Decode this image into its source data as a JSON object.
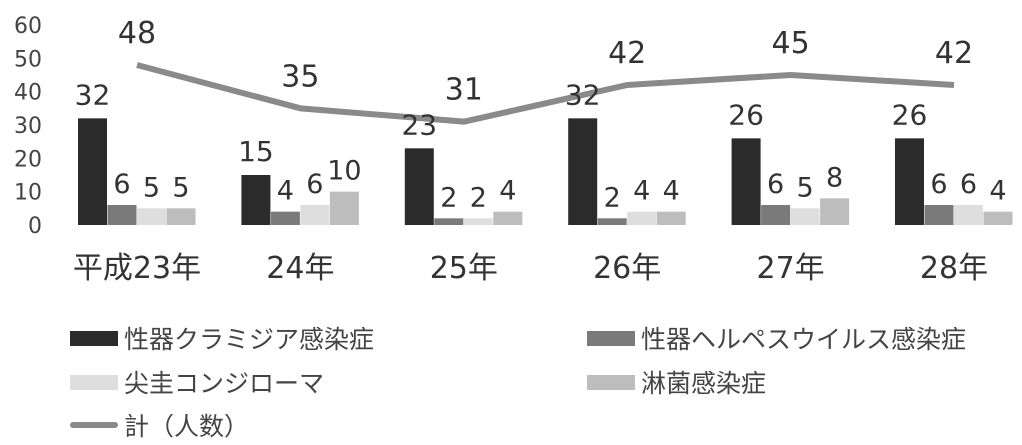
{
  "chart_data": {
    "type": "bar",
    "categories": [
      "平成23年",
      "24年",
      "25年",
      "26年",
      "27年",
      "28年"
    ],
    "ylim": [
      0,
      60
    ],
    "yticks": [
      0,
      10,
      20,
      30,
      40,
      50,
      60
    ],
    "grid": false,
    "legend_position": "bottom",
    "series": [
      {
        "name": "性器クラミジア感染症",
        "kind": "bar",
        "color": "#2b2b2b",
        "values": [
          32,
          15,
          23,
          32,
          26,
          26
        ]
      },
      {
        "name": "性器ヘルペスウイルス感染症",
        "kind": "bar",
        "color": "#7a7a7a",
        "values": [
          6,
          4,
          2,
          2,
          6,
          6
        ]
      },
      {
        "name": "尖圭コンジローマ",
        "kind": "bar",
        "color": "#dedede",
        "values": [
          5,
          6,
          2,
          4,
          5,
          6
        ]
      },
      {
        "name": "淋菌感染症",
        "kind": "bar",
        "color": "#bdbdbd",
        "values": [
          5,
          10,
          4,
          4,
          8,
          4
        ]
      },
      {
        "name": "計（人数）",
        "kind": "line",
        "color": "#8a8a8a",
        "values": [
          48,
          35,
          31,
          42,
          45,
          42
        ]
      }
    ]
  }
}
